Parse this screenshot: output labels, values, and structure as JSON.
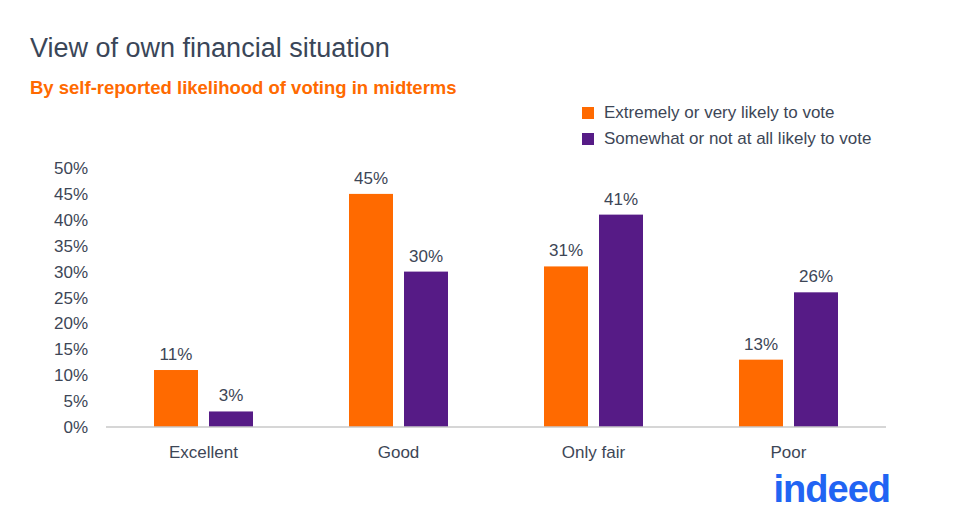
{
  "chart_data": {
    "type": "bar",
    "title": "View of own financial situation",
    "subtitle": "By self-reported likelihood of voting in midterms",
    "logo": "indeed",
    "categories": [
      "Excellent",
      "Good",
      "Only fair",
      "Poor"
    ],
    "series": [
      {
        "name": "Extremely or very likely to vote",
        "color": "#ff6a00",
        "values": [
          11,
          45,
          31,
          13
        ],
        "value_labels": [
          "11%",
          "45%",
          "31%",
          "13%"
        ]
      },
      {
        "name": "Somewhat or not at all likely to vote",
        "color": "#561b86",
        "values": [
          3,
          30,
          41,
          26
        ],
        "value_labels": [
          "3%",
          "30%",
          "41%",
          "26%"
        ]
      }
    ],
    "ylim": [
      0,
      50
    ],
    "yticks": [
      {
        "value": 0,
        "label": "0%"
      },
      {
        "value": 5,
        "label": "5%"
      },
      {
        "value": 10,
        "label": "10%"
      },
      {
        "value": 15,
        "label": "15%"
      },
      {
        "value": 20,
        "label": "20%"
      },
      {
        "value": 25,
        "label": "25%"
      },
      {
        "value": 30,
        "label": "30%"
      },
      {
        "value": 35,
        "label": "35%"
      },
      {
        "value": 40,
        "label": "40%"
      },
      {
        "value": 45,
        "label": "45%"
      },
      {
        "value": 50,
        "label": "50%"
      }
    ],
    "grid": false,
    "data_labels": true,
    "legend": "top-right"
  }
}
